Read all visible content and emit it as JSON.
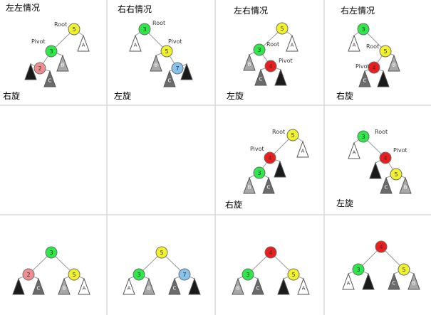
{
  "colors": {
    "yellow": "#f2f22a",
    "green": "#2ee84a",
    "red": "#ee1d1d",
    "pink": "#ef8e8e",
    "blue": "#86c3ef",
    "black": "#1a1a1a",
    "dark": "#6b6b6b",
    "gray": "#a8a8a8",
    "white": "#ffffff"
  },
  "captions": {
    "c1": "左左情况",
    "c2": "右右情况",
    "c3": "左右情况",
    "c4": "右左情况",
    "r1c1": "右旋",
    "r1c2": "左旋",
    "r1c3": "左旋",
    "r1c4": "右旋",
    "r2c3": "右旋",
    "r2c4": "左旋"
  },
  "tags": {
    "root": "Root",
    "pivot": "Pivot"
  },
  "diagrams": [
    {
      "id": "c1",
      "nodes": [
        {
          "label": "5",
          "color": "yellow",
          "tag": "root"
        },
        {
          "label": "3",
          "color": "green",
          "tag": "pivot"
        },
        {
          "label": "2",
          "color": "pink"
        }
      ],
      "subtrees": [
        {
          "label": "A",
          "color": "white"
        },
        {
          "label": "B",
          "color": "gray"
        },
        {
          "label": "C",
          "color": "dark"
        },
        {
          "label": "",
          "color": "black"
        }
      ]
    },
    {
      "id": "c2",
      "nodes": [
        {
          "label": "3",
          "color": "green",
          "tag": "root"
        },
        {
          "label": "5",
          "color": "yellow",
          "tag": "pivot"
        },
        {
          "label": "7",
          "color": "blue"
        }
      ],
      "subtrees": [
        {
          "label": "A",
          "color": "white"
        },
        {
          "label": "B",
          "color": "gray"
        },
        {
          "label": "C",
          "color": "dark"
        },
        {
          "label": "",
          "color": "black"
        }
      ]
    },
    {
      "id": "c3",
      "nodes": [
        {
          "label": "5",
          "color": "yellow"
        },
        {
          "label": "3",
          "color": "green",
          "tag": "root"
        },
        {
          "label": "4",
          "color": "red",
          "tag": "pivot"
        }
      ],
      "subtrees": [
        {
          "label": "A",
          "color": "white"
        },
        {
          "label": "B",
          "color": "gray"
        },
        {
          "label": "C",
          "color": "dark"
        },
        {
          "label": "",
          "color": "black"
        }
      ]
    },
    {
      "id": "c4",
      "nodes": [
        {
          "label": "3",
          "color": "green"
        },
        {
          "label": "5",
          "color": "yellow",
          "tag": "root"
        },
        {
          "label": "4",
          "color": "red",
          "tag": "pivot"
        }
      ],
      "subtrees": [
        {
          "label": "A",
          "color": "white"
        },
        {
          "label": "B",
          "color": "gray"
        },
        {
          "label": "C",
          "color": "dark"
        },
        {
          "label": "",
          "color": "black"
        }
      ]
    },
    {
      "id": "c3b",
      "nodes": [
        {
          "label": "5",
          "color": "yellow",
          "tag": "root"
        },
        {
          "label": "4",
          "color": "red",
          "tag": "pivot"
        },
        {
          "label": "3",
          "color": "green"
        }
      ],
      "subtrees": [
        {
          "label": "A",
          "color": "white"
        },
        {
          "label": "",
          "color": "black"
        },
        {
          "label": "B",
          "color": "gray"
        },
        {
          "label": "C",
          "color": "dark"
        }
      ]
    },
    {
      "id": "c4b",
      "nodes": [
        {
          "label": "3",
          "color": "green",
          "tag": "root"
        },
        {
          "label": "4",
          "color": "red",
          "tag": "pivot"
        },
        {
          "label": "5",
          "color": "yellow"
        }
      ],
      "subtrees": [
        {
          "label": "A",
          "color": "white"
        },
        {
          "label": "",
          "color": "black"
        },
        {
          "label": "C",
          "color": "dark"
        },
        {
          "label": "B",
          "color": "gray"
        }
      ]
    },
    {
      "id": "f1",
      "nodes": [
        {
          "label": "3",
          "color": "green"
        },
        {
          "label": "2",
          "color": "pink"
        },
        {
          "label": "5",
          "color": "yellow"
        }
      ],
      "subtrees": [
        {
          "label": "",
          "color": "black"
        },
        {
          "label": "C",
          "color": "dark"
        },
        {
          "label": "B",
          "color": "gray"
        },
        {
          "label": "A",
          "color": "white"
        }
      ]
    },
    {
      "id": "f2",
      "nodes": [
        {
          "label": "5",
          "color": "yellow"
        },
        {
          "label": "3",
          "color": "green"
        },
        {
          "label": "7",
          "color": "blue"
        }
      ],
      "subtrees": [
        {
          "label": "A",
          "color": "white"
        },
        {
          "label": "B",
          "color": "gray"
        },
        {
          "label": "C",
          "color": "dark"
        },
        {
          "label": "",
          "color": "black"
        }
      ]
    },
    {
      "id": "f3",
      "nodes": [
        {
          "label": "4",
          "color": "red"
        },
        {
          "label": "3",
          "color": "green"
        },
        {
          "label": "5",
          "color": "yellow"
        }
      ],
      "subtrees": [
        {
          "label": "B",
          "color": "gray"
        },
        {
          "label": "C",
          "color": "dark"
        },
        {
          "label": "",
          "color": "black"
        },
        {
          "label": "A",
          "color": "white"
        }
      ]
    },
    {
      "id": "f4",
      "nodes": [
        {
          "label": "4",
          "color": "red"
        },
        {
          "label": "3",
          "color": "green"
        },
        {
          "label": "5",
          "color": "yellow"
        }
      ],
      "subtrees": [
        {
          "label": "A",
          "color": "white"
        },
        {
          "label": "",
          "color": "black"
        },
        {
          "label": "C",
          "color": "dark"
        },
        {
          "label": "B",
          "color": "gray"
        }
      ]
    }
  ]
}
